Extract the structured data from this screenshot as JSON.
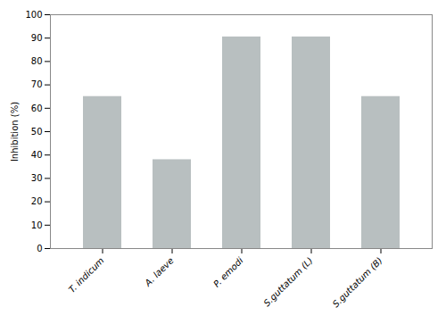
{
  "chart_data": {
    "type": "bar",
    "categories": [
      "T. indicum",
      "A. laeve",
      "P. emodi",
      "S.guttatum (L)",
      "S.guttatum (B)"
    ],
    "values": [
      65,
      38,
      90.5,
      90.5,
      65
    ],
    "color": "#b8bfc0",
    "ylabel": "Inhibition (%)",
    "ylim": [
      0,
      100
    ],
    "yticks": [
      0,
      10,
      20,
      30,
      40,
      50,
      60,
      70,
      80,
      90,
      100
    ],
    "grid": false
  }
}
